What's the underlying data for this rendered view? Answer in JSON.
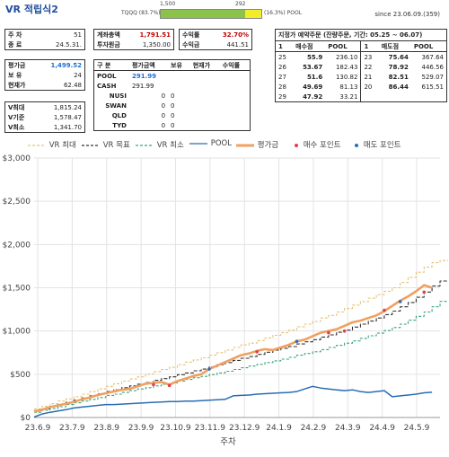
{
  "header": {
    "title_prefix": "VR",
    "title": "적립식2",
    "since": "since 23.06.09.(359)",
    "bar_left_num": "1,500",
    "bar_right_num": "292",
    "bar_left_label": "TQQQ (83.7%)",
    "bar_right_label": "(16.3%) POOL",
    "bar_fraction": 0.837
  },
  "box_week": {
    "rows": [
      {
        "label": "주 차",
        "value": "51"
      },
      {
        "label": "종 료",
        "value": "24.5.31."
      }
    ]
  },
  "box_invest": {
    "rows": [
      {
        "label": "계좌총액",
        "value": "1,791.51"
      },
      {
        "label": "투자원금",
        "value": "1,350.00"
      }
    ]
  },
  "box_return": {
    "rows": [
      {
        "label": "수익률",
        "value": "32.70%"
      },
      {
        "label": "수익금",
        "value": "441.51"
      }
    ]
  },
  "box_eval": {
    "rows": [
      {
        "label": "평가금",
        "value": "1,499.52"
      },
      {
        "label": "보 유",
        "value": "24"
      },
      {
        "label": "현재가",
        "value": "62.48"
      }
    ]
  },
  "box_v": {
    "rows": [
      {
        "label": "V최대",
        "value": "1,815.24"
      },
      {
        "label": "V기준",
        "value": "1,578.47"
      },
      {
        "label": "V최소",
        "value": "1,341.70"
      }
    ]
  },
  "holdings": {
    "headers": [
      "구 분",
      "평가금액",
      "보유",
      "현재가",
      "수익률"
    ],
    "rows": [
      {
        "name": "POOL",
        "amount": "291.99",
        "qty": "",
        "price": "",
        "ret": ""
      },
      {
        "name": "CASH",
        "amount": "291.99",
        "qty": "",
        "price": "",
        "ret": ""
      },
      {
        "name": "NUSI",
        "amount": "0",
        "qty": "0",
        "price": "",
        "ret": ""
      },
      {
        "name": "SWAN",
        "amount": "0",
        "qty": "0",
        "price": "",
        "ret": ""
      },
      {
        "name": "QLD",
        "amount": "0",
        "qty": "0",
        "price": "",
        "ret": ""
      },
      {
        "name": "TYD",
        "amount": "0",
        "qty": "0",
        "price": "",
        "ret": ""
      }
    ]
  },
  "schedule": {
    "title": "지정가 예약주문 (잔량주문, 기간: 05.25 ~ 06.07)",
    "headers": [
      "1",
      "매수점",
      "POOL",
      "1",
      "매도점",
      "POOL"
    ],
    "rows": [
      {
        "bi": "25",
        "bp": "55.9",
        "bpool": "236.10",
        "si": "23",
        "sp": "75.64",
        "spool": "367.64"
      },
      {
        "bi": "26",
        "bp": "53.67",
        "bpool": "182.43",
        "si": "22",
        "sp": "78.92",
        "spool": "446.56"
      },
      {
        "bi": "27",
        "bp": "51.6",
        "bpool": "130.82",
        "si": "21",
        "sp": "82.51",
        "spool": "529.07"
      },
      {
        "bi": "28",
        "bp": "49.69",
        "bpool": "81.13",
        "si": "20",
        "sp": "86.44",
        "spool": "615.51"
      },
      {
        "bi": "29",
        "bp": "47.92",
        "bpool": "33.21",
        "si": "",
        "sp": "",
        "spool": ""
      }
    ]
  },
  "legend": {
    "items": [
      {
        "label": "VR 최대",
        "color": "#e6c27a",
        "style": "dashed"
      },
      {
        "label": "VR 목표",
        "color": "#333333",
        "style": "dashed"
      },
      {
        "label": "VR 최소",
        "color": "#3aa57a",
        "style": "dashed"
      },
      {
        "label": "POOL",
        "color": "#2a6db5",
        "style": "solid"
      },
      {
        "label": "평가금",
        "color": "#f0a060",
        "style": "solid"
      },
      {
        "label": "매수 포인트",
        "color": "#e04050",
        "style": "dot"
      },
      {
        "label": "매도 포인트",
        "color": "#2a6db5",
        "style": "dot"
      }
    ]
  },
  "chart_data": {
    "type": "line",
    "xlabel": "주차",
    "ylabel": "",
    "ylim": [
      0,
      3000
    ],
    "yticks": [
      "$0",
      "$500",
      "$1,000",
      "$1,500",
      "$2,000",
      "$2,500",
      "$3,000"
    ],
    "ytick_values": [
      0,
      500,
      1000,
      1500,
      2000,
      2500,
      3000
    ],
    "xticks": [
      "23.6.9",
      "23.7.9",
      "23.8.9",
      "23.9.9",
      "23.10.9",
      "23.11.9",
      "23.12.9",
      "24.1.9",
      "24.2.9",
      "24.3.9",
      "24.4.9",
      "24.5.9"
    ],
    "x_max_week": 51,
    "grid": true,
    "series": [
      {
        "name": "VR 최대",
        "color": "#e6c27a",
        "dash": "3,2",
        "values": [
          100,
          130,
          160,
          190,
          215,
          240,
          270,
          300,
          330,
          360,
          390,
          420,
          445,
          470,
          500,
          530,
          555,
          580,
          610,
          640,
          665,
          690,
          720,
          750,
          780,
          810,
          840,
          860,
          890,
          920,
          950,
          980,
          1010,
          1050,
          1080,
          1110,
          1150,
          1180,
          1220,
          1260,
          1300,
          1340,
          1380,
          1420,
          1460,
          1500,
          1560,
          1620,
          1680,
          1740,
          1790,
          1815
        ]
      },
      {
        "name": "VR 목표",
        "color": "#333333",
        "dash": "4,2",
        "values": [
          80,
          100,
          125,
          150,
          175,
          200,
          225,
          250,
          275,
          300,
          320,
          345,
          365,
          385,
          405,
          430,
          450,
          470,
          495,
          515,
          540,
          560,
          585,
          610,
          635,
          660,
          685,
          705,
          730,
          755,
          780,
          800,
          820,
          850,
          875,
          900,
          930,
          955,
          985,
          1010,
          1045,
          1080,
          1115,
          1150,
          1190,
          1230,
          1280,
          1330,
          1390,
          1450,
          1520,
          1578
        ]
      },
      {
        "name": "VR 최소",
        "color": "#3aa57a",
        "dash": "3,2",
        "values": [
          60,
          85,
          105,
          125,
          150,
          170,
          190,
          210,
          230,
          255,
          270,
          290,
          310,
          330,
          345,
          365,
          385,
          400,
          420,
          440,
          460,
          475,
          495,
          515,
          535,
          555,
          575,
          595,
          615,
          635,
          655,
          675,
          695,
          720,
          740,
          760,
          785,
          810,
          835,
          860,
          885,
          915,
          945,
          975,
          1005,
          1040,
          1080,
          1125,
          1170,
          1220,
          1280,
          1342
        ]
      },
      {
        "name": "POOL",
        "color": "#2a6db5",
        "dash": "",
        "values": [
          5,
          40,
          60,
          75,
          90,
          110,
          120,
          130,
          140,
          150,
          150,
          155,
          160,
          165,
          170,
          175,
          180,
          185,
          185,
          190,
          190,
          195,
          200,
          205,
          210,
          250,
          255,
          260,
          270,
          275,
          280,
          285,
          290,
          300,
          330,
          360,
          340,
          330,
          320,
          310,
          320,
          300,
          290,
          300,
          310,
          240,
          250,
          260,
          270,
          285,
          292
        ]
      },
      {
        "name": "평가금",
        "color": "#f0a060",
        "dash": "",
        "values": [
          70,
          90,
          120,
          140,
          160,
          180,
          210,
          230,
          260,
          280,
          300,
          320,
          330,
          360,
          390,
          400,
          410,
          380,
          420,
          450,
          480,
          500,
          560,
          600,
          640,
          680,
          720,
          740,
          770,
          790,
          780,
          810,
          840,
          880,
          900,
          940,
          980,
          1000,
          1020,
          1060,
          1100,
          1120,
          1150,
          1180,
          1230,
          1290,
          1350,
          1400,
          1460,
          1530,
          1499.52
        ]
      },
      {
        "name": "매수 포인트",
        "color": "#e04050",
        "type": "scatter",
        "x": [
          15,
          17,
          28,
          37,
          39,
          44,
          49
        ],
        "values": [
          380,
          370,
          760,
          980,
          1000,
          1240,
          1450
        ]
      },
      {
        "name": "매도 포인트",
        "color": "#2a6db5",
        "type": "scatter",
        "x": [
          22,
          33,
          46
        ],
        "values": [
          560,
          880,
          1340
        ]
      }
    ]
  }
}
